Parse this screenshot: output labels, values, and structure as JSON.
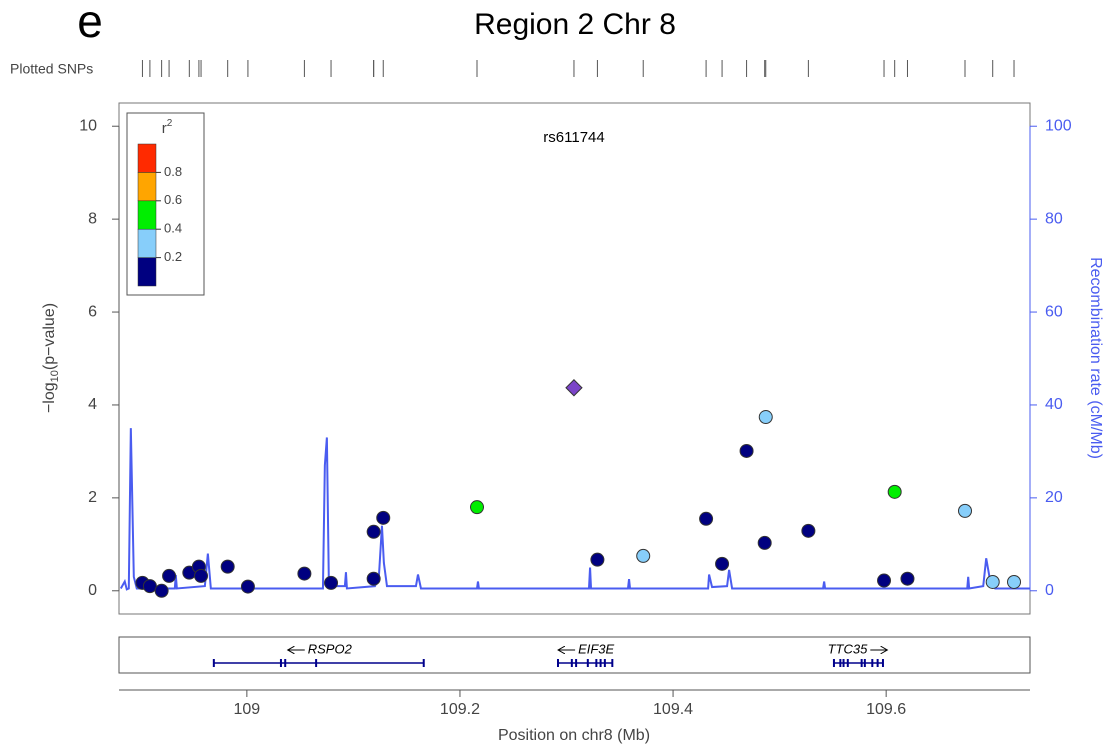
{
  "chart_data": {
    "type": "scatter",
    "panel_label": "e",
    "title": "Region 2 Chr 8",
    "rug_label": "Plotted SNPs",
    "annotation": "rs611744",
    "ylabel": {
      "prefix": "−log",
      "sub": "10",
      "suffix": "(p−value)"
    },
    "y2label": "Recombination rate (cM/Mb)",
    "xlabel": "Position on chr8 (Mb)",
    "xlim": [
      108.88,
      109.735
    ],
    "xticks": [
      109,
      109.2,
      109.4,
      109.6
    ],
    "ylim": [
      -0.5,
      10.5
    ],
    "yticks": [
      0,
      2,
      4,
      6,
      8,
      10
    ],
    "y2lim": [
      -5,
      105
    ],
    "y2ticks": [
      0,
      20,
      40,
      60,
      80,
      100
    ],
    "y2color": "#4a5cf0",
    "legend": {
      "title": "r",
      "title_sup": "2",
      "colors": [
        "#000080",
        "#87cefa",
        "#00ee00",
        "#ffa500",
        "#ff2a00"
      ],
      "ticks": [
        0.2,
        0.4,
        0.6,
        0.8
      ]
    },
    "series": [
      {
        "type": "line",
        "axis": "y2",
        "color": "#4a5cf0",
        "x": [
          108.8817,
          108.8854,
          108.8873,
          108.8892,
          108.8911,
          108.8939,
          108.8967,
          108.9324,
          108.9333,
          108.9343,
          108.9606,
          108.9634,
          108.9662,
          109.0122,
          109.0685,
          109.0714,
          109.0732,
          109.0751,
          109.077,
          109.092,
          109.093,
          109.0939,
          109.1202,
          109.1239,
          109.1268,
          109.1286,
          109.1315,
          109.1587,
          109.1606,
          109.1634,
          109.216,
          109.2169,
          109.2178,
          109.3211,
          109.3221,
          109.323,
          109.3577,
          109.3587,
          109.3596,
          109.4329,
          109.4338,
          109.4366,
          109.4507,
          109.4526,
          109.4554,
          109.5408,
          109.5418,
          109.5427,
          109.6761,
          109.677,
          109.6779,
          109.6911,
          109.6939,
          109.6977,
          109.7023,
          109.7352
        ],
        "values": [
          0.5,
          2,
          0.3,
          0.5,
          35,
          3,
          0.5,
          0.5,
          3.4,
          0.5,
          1,
          8,
          0.5,
          0.5,
          0.5,
          0.5,
          27,
          33,
          1,
          1,
          4,
          0.5,
          1,
          3,
          14,
          6,
          1,
          1,
          3.5,
          0.5,
          0.5,
          2,
          0.5,
          0.5,
          5,
          0.5,
          0.5,
          2.5,
          0.5,
          0.5,
          3.5,
          0.8,
          1,
          4.5,
          0.5,
          0.5,
          2,
          0.5,
          0.5,
          3,
          0.5,
          1,
          7,
          2,
          0.5,
          0.5
        ]
      },
      {
        "type": "scatter",
        "color": "#000080",
        "x": [
          108.902,
          108.909,
          108.92,
          108.927,
          108.946,
          108.955,
          108.957,
          108.982,
          109.001,
          109.054,
          109.079,
          109.119,
          109.128,
          109.119,
          109.329,
          109.431,
          109.446,
          109.469,
          109.486,
          109.527,
          109.598,
          109.62
        ],
        "values": [
          0.17,
          0.1,
          0.0,
          0.32,
          0.39,
          0.52,
          0.32,
          0.52,
          0.09,
          0.37,
          0.17,
          1.27,
          1.57,
          0.26,
          0.67,
          1.55,
          0.58,
          3.01,
          1.03,
          1.29,
          0.22,
          0.26
        ]
      },
      {
        "type": "scatter",
        "color": "#87cefa",
        "x": [
          109.372,
          109.487,
          109.674,
          109.7,
          109.72
        ],
        "values": [
          0.75,
          3.74,
          1.72,
          0.19,
          0.19
        ]
      },
      {
        "type": "scatter",
        "color": "#00ee00",
        "x": [
          109.216,
          109.608
        ],
        "values": [
          1.8,
          2.13
        ]
      },
      {
        "type": "scatter",
        "marker": "diamond",
        "color": "#7b44c8",
        "x": [
          109.307
        ],
        "values": [
          4.37
        ]
      }
    ],
    "genes": [
      {
        "name": "RSPO2",
        "strand": "-",
        "start": 108.969,
        "end": 109.166,
        "exons": [
          108.969,
          109.032,
          109.036,
          109.065,
          109.166
        ]
      },
      {
        "name": "EIF3E",
        "strand": "-",
        "start": 109.292,
        "end": 109.343,
        "exons": [
          109.292,
          109.305,
          109.309,
          109.32,
          109.328,
          109.332,
          109.336,
          109.343
        ]
      },
      {
        "name": "TTC35",
        "strand": "+",
        "start": 109.551,
        "end": 109.597,
        "exons": [
          109.551,
          109.557,
          109.56,
          109.564,
          109.577,
          109.58,
          109.587,
          109.592,
          109.597
        ]
      }
    ]
  }
}
